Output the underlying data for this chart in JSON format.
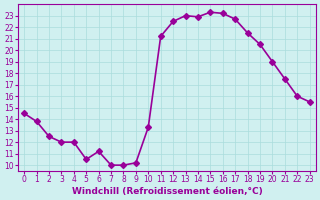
{
  "x": [
    0,
    1,
    2,
    3,
    4,
    5,
    6,
    7,
    8,
    9,
    10,
    11,
    12,
    13,
    14,
    15,
    16,
    17,
    18,
    19,
    20,
    21,
    22,
    23
  ],
  "y": [
    14.5,
    13.8,
    12.5,
    12.0,
    12.0,
    10.5,
    11.2,
    10.0,
    10.0,
    10.2,
    13.3,
    21.2,
    22.5,
    23.0,
    22.9,
    23.3,
    23.2,
    22.7,
    21.5,
    20.5,
    19.0,
    17.5,
    16.0,
    15.5
  ],
  "line_color": "#990099",
  "marker": "D",
  "markersize": 3,
  "linewidth": 1.2,
  "xlabel": "Windchill (Refroidissement éolien,°C)",
  "xlim": [
    -0.5,
    23.5
  ],
  "ylim": [
    9.5,
    24.0
  ],
  "yticks": [
    10,
    11,
    12,
    13,
    14,
    15,
    16,
    17,
    18,
    19,
    20,
    21,
    22,
    23
  ],
  "xticks": [
    0,
    1,
    2,
    3,
    4,
    5,
    6,
    7,
    8,
    9,
    10,
    11,
    12,
    13,
    14,
    15,
    16,
    17,
    18,
    19,
    20,
    21,
    22,
    23
  ],
  "bg_color": "#d0f0f0",
  "grid_color": "#aadddd",
  "tick_fontsize": 5.5,
  "xlabel_fontsize": 6.5,
  "line_border_color": "#990099"
}
